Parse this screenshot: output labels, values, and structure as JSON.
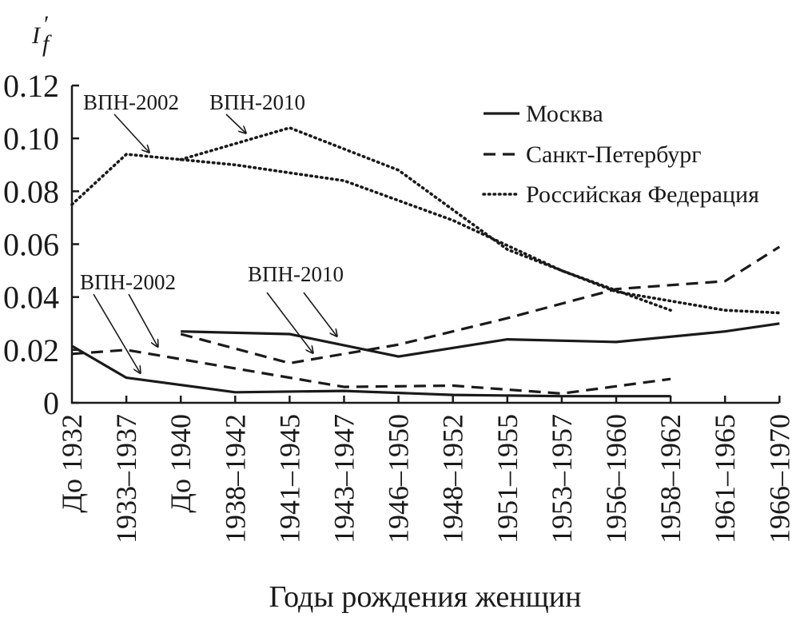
{
  "chart_data": {
    "type": "line",
    "ylabel": "I′f",
    "xlabel": "Годы рождения женщин",
    "ylim": [
      0,
      0.12
    ],
    "yticks": [
      {
        "value": 0,
        "label": "0"
      },
      {
        "value": 0.02,
        "label": "0.02"
      },
      {
        "value": 0.04,
        "label": "0.04"
      },
      {
        "value": 0.06,
        "label": "0.06"
      },
      {
        "value": 0.08,
        "label": "0.08"
      },
      {
        "value": 0.1,
        "label": "0.10"
      },
      {
        "value": 0.12,
        "label": "0.12"
      }
    ],
    "categories": [
      "До 1932",
      "1933–1937",
      "До 1940",
      "1938–1942",
      "1941–1945",
      "1943–1947",
      "1946–1950",
      "1948–1952",
      "1951–1955",
      "1953–1957",
      "1956–1960",
      "1958–1962",
      "1961–1965",
      "1966–1970"
    ],
    "grid": false,
    "legend_position": "top-right",
    "legend": [
      {
        "label": "Москва",
        "style": "solid"
      },
      {
        "label": "Санкт-Петербург",
        "style": "dashed"
      },
      {
        "label": "Российская Федерация",
        "style": "dotted"
      }
    ],
    "series": [
      {
        "name": "Москва",
        "census": "ВПН-2002",
        "style": "solid",
        "x": [
          "До 1932",
          "1933–1937",
          "1938–1942",
          "1943–1947",
          "1948–1952",
          "1953–1957",
          "1958–1962"
        ],
        "values": [
          0.0215,
          0.0095,
          0.004,
          0.0045,
          0.003,
          0.0025,
          0.0025
        ]
      },
      {
        "name": "Москва",
        "census": "ВПН-2010",
        "style": "solid",
        "x": [
          "До 1940",
          "1941–1945",
          "1946–1950",
          "1951–1955",
          "1956–1960",
          "1961–1965",
          "1966–1970"
        ],
        "values": [
          0.027,
          0.026,
          0.0175,
          0.024,
          0.023,
          0.027,
          0.03
        ]
      },
      {
        "name": "Санкт-Петербург",
        "census": "ВПН-2002",
        "style": "dashed",
        "x": [
          "До 1932",
          "1933–1937",
          "1938–1942",
          "1943–1947",
          "1948–1952",
          "1953–1957",
          "1958–1962"
        ],
        "values": [
          0.0185,
          0.02,
          0.013,
          0.006,
          0.0065,
          0.0035,
          0.009
        ]
      },
      {
        "name": "Санкт-Петербург",
        "census": "ВПН-2010",
        "style": "dashed",
        "x": [
          "До 1940",
          "1941–1945",
          "1946–1950",
          "1951–1955",
          "1956–1960",
          "1961–1965",
          "1966–1970"
        ],
        "values": [
          0.026,
          0.015,
          0.022,
          0.032,
          0.043,
          0.046,
          0.059
        ]
      },
      {
        "name": "Российская Федерация",
        "census": "ВПН-2002",
        "style": "dotted",
        "x": [
          "До 1932",
          "1933–1937",
          "1938–1942",
          "1943–1947",
          "1948–1952",
          "1953–1957",
          "1958–1962"
        ],
        "values": [
          0.075,
          0.094,
          0.09,
          0.084,
          0.069,
          0.05,
          0.035
        ]
      },
      {
        "name": "Российская Федерация",
        "census": "ВПН-2010",
        "style": "dotted",
        "x": [
          "До 1940",
          "1941–1945",
          "1946–1950",
          "1951–1955",
          "1956–1960",
          "1961–1965",
          "1966–1970"
        ],
        "values": [
          0.092,
          0.104,
          0.088,
          0.058,
          0.042,
          0.035,
          0.034
        ]
      }
    ],
    "annotations": [
      {
        "text": "ВПН-2002",
        "target": "Российская Федерация ВПН-2002",
        "at": "1933–1937"
      },
      {
        "text": "ВПН-2010",
        "target": "Российская Федерация ВПН-2010"
      },
      {
        "text": "ВПН-2002",
        "target": "Москва / Санкт-Петербург ВПН-2002"
      },
      {
        "text": "ВПН-2010",
        "target": "Москва / Санкт-Петербург ВПН-2010"
      }
    ]
  }
}
